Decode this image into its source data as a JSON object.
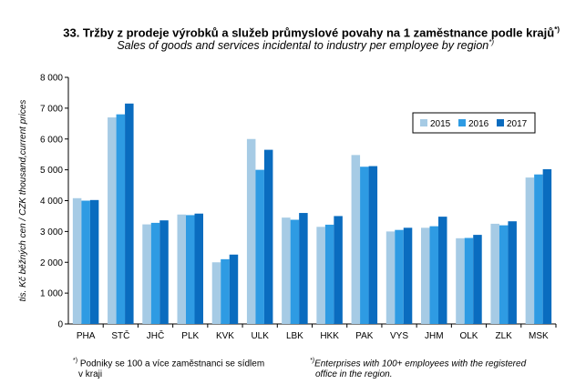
{
  "title": {
    "text": "33. Tržby z prodeje výrobků a služeb průmyslové povahy na 1 zaměstnance podle krajů",
    "marker": "*)"
  },
  "subtitle": {
    "text": "Sales of goods and services incidental to industry per employee  by region",
    "marker": "*)"
  },
  "footnotes": {
    "cz_marker": "*)",
    "cz_line1": "Podniky se 100 a více zaměstnanci se sídlem",
    "cz_line2": "v kraji",
    "en_marker": "*)",
    "en_line1": "Enterprises with 100+ employees with the registered",
    "en_line2": "office in the region."
  },
  "colors": {
    "2015": "#a6cbe5",
    "2016": "#2e9be3",
    "2017": "#0a6cbf"
  },
  "chart_data": {
    "type": "bar",
    "ylabel": "tis. Kč běžných cen / CZK thousand,current prices",
    "ylim": [
      0,
      8000
    ],
    "yticks": [
      0,
      1000,
      2000,
      3000,
      4000,
      5000,
      6000,
      7000,
      8000
    ],
    "ytick_labels": [
      "0",
      "1 000",
      "2 000",
      "3 000",
      "4 000",
      "5 000",
      "6 000",
      "7 000",
      "8 000"
    ],
    "categories": [
      "PHA",
      "STČ",
      "JHČ",
      "PLK",
      "KVK",
      "ULK",
      "LBK",
      "HKK",
      "PAK",
      "VYS",
      "JHM",
      "OLK",
      "ZLK",
      "MSK"
    ],
    "legend_position": "top-right",
    "grid": false,
    "series": [
      {
        "name": "2015",
        "values": [
          4080,
          6700,
          3230,
          3550,
          2000,
          6000,
          3450,
          3150,
          5480,
          3000,
          3120,
          2780,
          3250,
          4750
        ]
      },
      {
        "name": "2016",
        "values": [
          4000,
          6800,
          3280,
          3530,
          2100,
          5000,
          3380,
          3220,
          5100,
          3050,
          3170,
          2790,
          3200,
          4850
        ]
      },
      {
        "name": "2017",
        "values": [
          4020,
          7150,
          3360,
          3580,
          2250,
          5650,
          3600,
          3500,
          5120,
          3120,
          3480,
          2890,
          3330,
          5020
        ]
      }
    ]
  }
}
